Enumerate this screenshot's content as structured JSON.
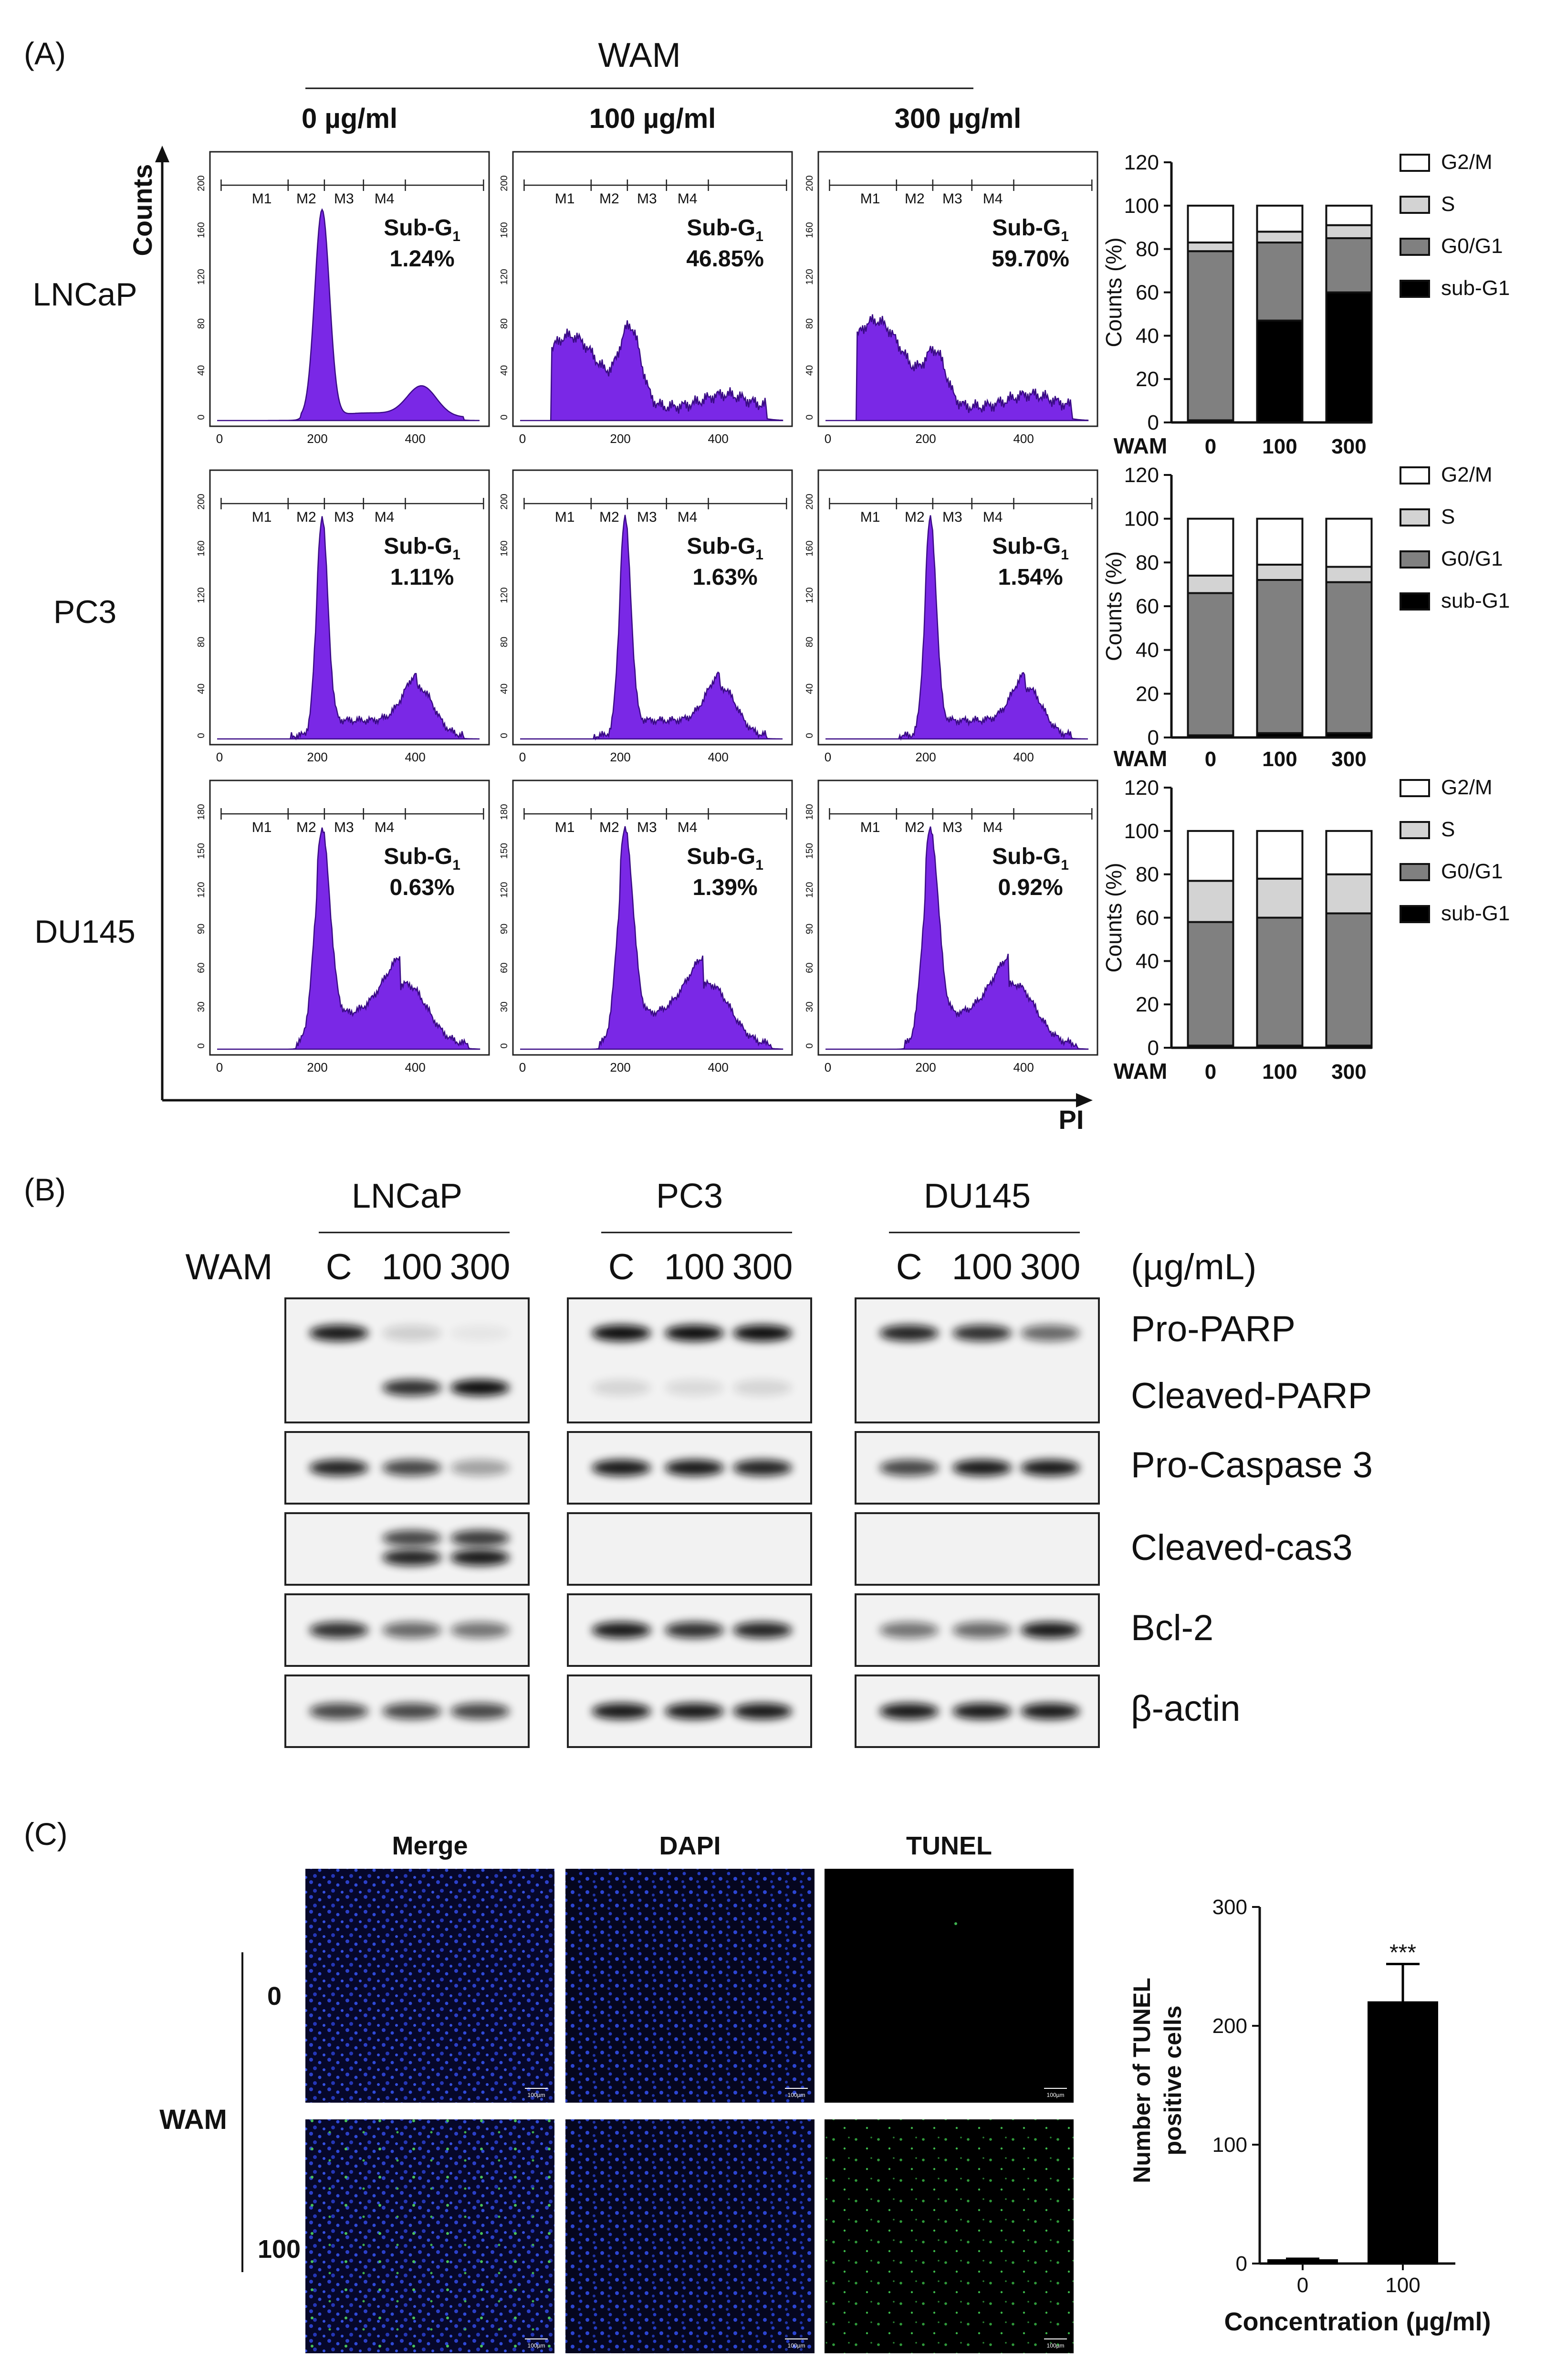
{
  "panel_labels": [
    "(A)",
    "(B)",
    "(C)"
  ],
  "A": {
    "treatment": "WAM",
    "concentrations": [
      "0 µg/ml",
      "100 µg/ml",
      "300 µg/ml"
    ],
    "y_axis_label": "Counts",
    "x_axis_label": "PI",
    "markers": [
      "M1",
      "M2",
      "M3",
      "M4"
    ],
    "subg1_label": "Sub-G",
    "subg1_sub": "1",
    "rows": [
      {
        "name": "LNCaP",
        "values": [
          "1.24%",
          "46.85%",
          "59.70%"
        ],
        "yticks": [
          "200",
          "160",
          "120",
          "80",
          "40",
          "0"
        ]
      },
      {
        "name": "PC3",
        "values": [
          "1.11%",
          "1.63%",
          "1.54%"
        ],
        "yticks": [
          "200",
          "160",
          "120",
          "80",
          "40",
          "0"
        ]
      },
      {
        "name": "DU145",
        "values": [
          "0.63%",
          "1.39%",
          "0.92%"
        ],
        "yticks": [
          "180",
          "150",
          "120",
          "90",
          "60",
          "30",
          "0"
        ]
      }
    ],
    "xticks": [
      "0",
      "200",
      "400"
    ]
  },
  "B": {
    "cell_lines": [
      "LNCaP",
      "PC3",
      "DU145"
    ],
    "treatment": "WAM",
    "lanes": [
      "C",
      "100",
      "300"
    ],
    "units": "(µg/mL)",
    "bands": [
      "Pro-PARP",
      "Cleaved-PARP",
      "Pro-Caspase 3",
      "Cleaved-cas3",
      "Bcl-2",
      "β-actin"
    ]
  },
  "C": {
    "columns": [
      "Merge",
      "DAPI",
      "TUNEL"
    ],
    "treatment": "WAM",
    "rows": [
      "0",
      "100"
    ],
    "scale_bar": "100µm"
  },
  "chart_data": [
    {
      "type": "bar",
      "stacked": true,
      "title": "LNCaP",
      "xlabel": "WAM",
      "ylabel": "Counts (%)",
      "categories": [
        "0",
        "100",
        "300"
      ],
      "ylim": [
        0,
        120
      ],
      "yticks": [
        0,
        20,
        40,
        60,
        80,
        100,
        120
      ],
      "legend_position": "right",
      "series": [
        {
          "name": "sub-G1",
          "values": [
            1,
            47,
            60
          ],
          "color": "#000000"
        },
        {
          "name": "G0/G1",
          "values": [
            78,
            36,
            25
          ],
          "color": "#808080"
        },
        {
          "name": "S",
          "values": [
            4,
            5,
            6
          ],
          "color": "#d3d3d3"
        },
        {
          "name": "G2/M",
          "values": [
            17,
            12,
            9
          ],
          "color": "#ffffff"
        }
      ]
    },
    {
      "type": "bar",
      "stacked": true,
      "title": "PC3",
      "xlabel": "WAM",
      "ylabel": "Counts (%)",
      "categories": [
        "0",
        "100",
        "300"
      ],
      "ylim": [
        0,
        120
      ],
      "yticks": [
        0,
        20,
        40,
        60,
        80,
        100,
        120
      ],
      "legend_position": "right",
      "series": [
        {
          "name": "sub-G1",
          "values": [
            1,
            2,
            2
          ],
          "color": "#000000"
        },
        {
          "name": "G0/G1",
          "values": [
            65,
            70,
            69
          ],
          "color": "#808080"
        },
        {
          "name": "S",
          "values": [
            8,
            7,
            7
          ],
          "color": "#d3d3d3"
        },
        {
          "name": "G2/M",
          "values": [
            26,
            21,
            22
          ],
          "color": "#ffffff"
        }
      ]
    },
    {
      "type": "bar",
      "stacked": true,
      "title": "DU145",
      "xlabel": "WAM",
      "ylabel": "Counts (%)",
      "categories": [
        "0",
        "100",
        "300"
      ],
      "ylim": [
        0,
        120
      ],
      "yticks": [
        0,
        20,
        40,
        60,
        80,
        100,
        120
      ],
      "legend_position": "right",
      "series": [
        {
          "name": "sub-G1",
          "values": [
            1,
            1,
            1
          ],
          "color": "#000000"
        },
        {
          "name": "G0/G1",
          "values": [
            57,
            59,
            61
          ],
          "color": "#808080"
        },
        {
          "name": "S",
          "values": [
            19,
            18,
            18
          ],
          "color": "#d3d3d3"
        },
        {
          "name": "G2/M",
          "values": [
            23,
            22,
            20
          ],
          "color": "#ffffff"
        }
      ]
    },
    {
      "type": "bar",
      "xlabel": "Concentration (µg/ml)",
      "ylabel": "Number of TUNEL positive cells",
      "categories": [
        "0",
        "100"
      ],
      "values": [
        3,
        220
      ],
      "errors": [
        1,
        32
      ],
      "ylim": [
        0,
        300
      ],
      "yticks": [
        0,
        100,
        200,
        300
      ],
      "annotations": [
        {
          "category": "100",
          "text": "***"
        }
      ]
    }
  ]
}
